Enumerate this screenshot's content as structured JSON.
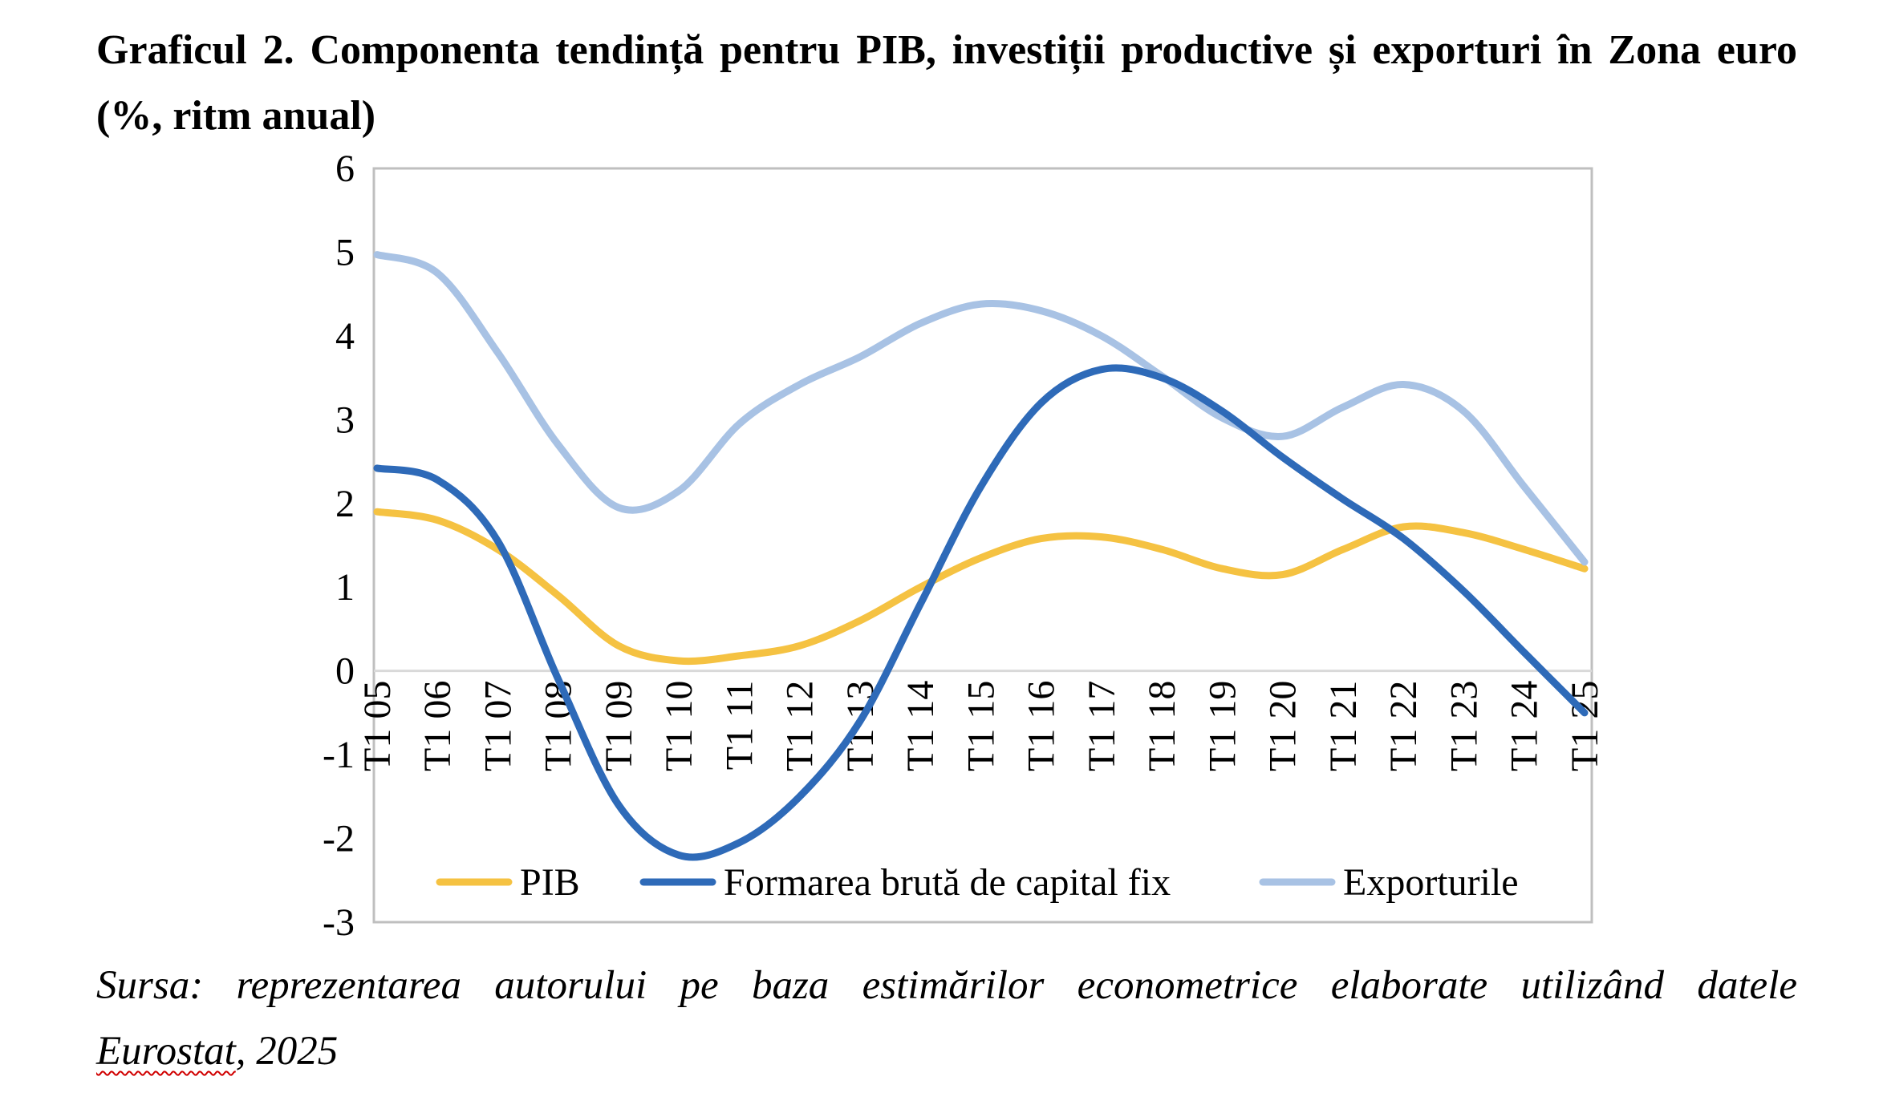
{
  "title": "Graficul 2. Componenta tendință pentru PIB, investiții productive și exporturi în Zona euro (%, ritm anual)",
  "source": {
    "line1": "Sursa: reprezentarea autorului pe baza estimărilor econometrice elaborate utilizând datele",
    "eurostat": "Eurostat",
    "year": ", 2025"
  },
  "chart_data": {
    "type": "line",
    "categories": [
      "T1 05",
      "T1 06",
      "T1 07",
      "T1 08",
      "T1 09",
      "T1 10",
      "T1 11",
      "T1 12",
      "T1 13",
      "T1 14",
      "T1 15",
      "T1 16",
      "T1 17",
      "T1 18",
      "T1 19",
      "T1 20",
      "T1 21",
      "T1 22",
      "T1 23",
      "T1 24",
      "T1 25"
    ],
    "ylim": [
      -3,
      6
    ],
    "yticks": [
      6,
      5,
      4,
      3,
      2,
      1,
      0,
      -1,
      -2,
      -3
    ],
    "grid": false,
    "legend_position": "bottom-inside",
    "series": [
      {
        "name": "PIB",
        "color": "#f5c242",
        "values": [
          1.9,
          1.8,
          1.45,
          0.9,
          0.3,
          0.12,
          0.18,
          0.3,
          0.6,
          1.0,
          1.35,
          1.58,
          1.6,
          1.45,
          1.22,
          1.15,
          1.45,
          1.72,
          1.65,
          1.45,
          1.22
        ]
      },
      {
        "name": "Formarea brută de capital fix",
        "color": "#2e6ab8",
        "values": [
          2.42,
          2.28,
          1.55,
          -0.1,
          -1.6,
          -2.2,
          -2.05,
          -1.5,
          -0.6,
          0.8,
          2.2,
          3.2,
          3.6,
          3.5,
          3.1,
          2.55,
          2.05,
          1.58,
          0.95,
          0.22,
          -0.5
        ]
      },
      {
        "name": "Exporturile",
        "color": "#a8c2e4",
        "values": [
          4.97,
          4.75,
          3.8,
          2.7,
          1.95,
          2.15,
          2.95,
          3.42,
          3.75,
          4.15,
          4.38,
          4.3,
          4.0,
          3.52,
          3.02,
          2.8,
          3.15,
          3.42,
          3.1,
          2.2,
          1.3
        ]
      }
    ]
  }
}
